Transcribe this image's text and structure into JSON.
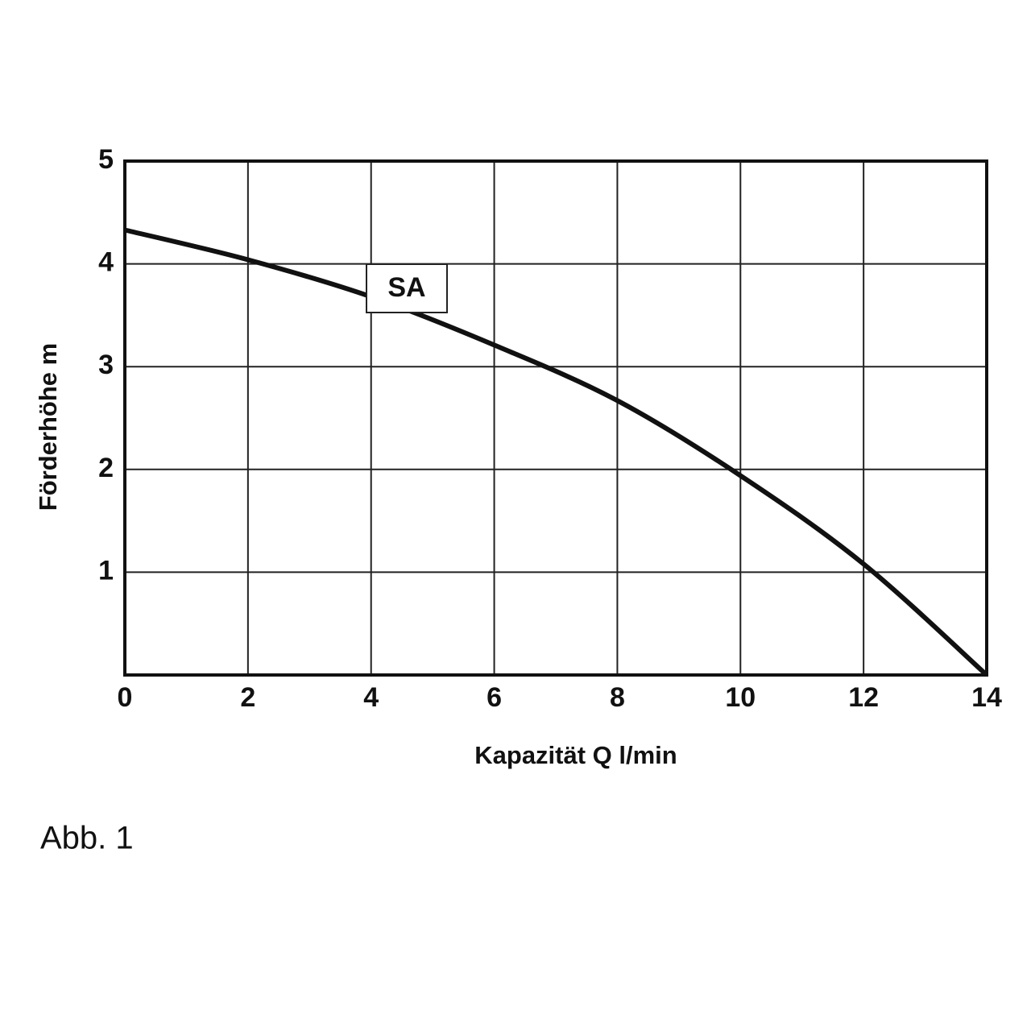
{
  "chart_data": {
    "type": "line",
    "x_label": "Kapazität Q l/min",
    "y_label": "Förderhöhe m",
    "x": [
      0,
      2,
      4,
      6,
      8,
      10,
      12,
      14
    ],
    "series": [
      {
        "name": "SA",
        "color": "#111111",
        "values": [
          4.33,
          4.04,
          3.68,
          3.21,
          2.67,
          1.94,
          1.08,
          0
        ]
      }
    ],
    "xlim": [
      0,
      14
    ],
    "xticks": [
      0,
      2,
      4,
      6,
      8,
      10,
      12,
      14
    ],
    "ylim": [
      0,
      5
    ],
    "yticks": [
      1,
      2,
      3,
      4,
      5
    ],
    "grid": true
  },
  "caption": "Abb. 1"
}
